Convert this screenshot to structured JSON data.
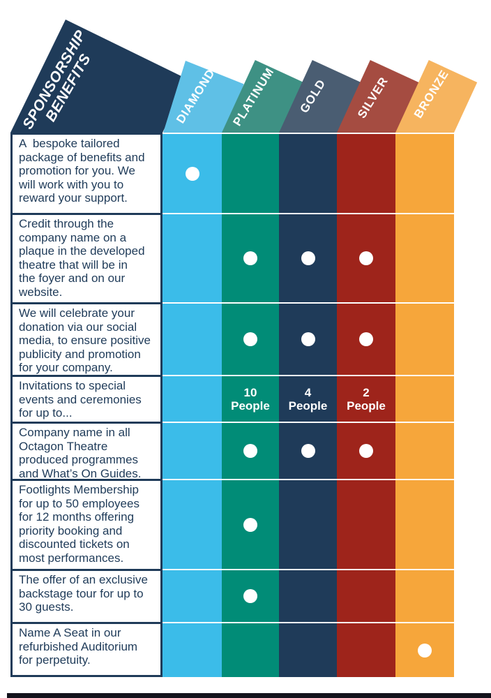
{
  "title": {
    "text": "SPONSORSHIP\nBENEFITS"
  },
  "tiers": [
    {
      "name": "DIAMOND",
      "banner_color": "#5fc0e6",
      "column_color": "#3bbce9"
    },
    {
      "name": "PLATINUM",
      "banner_color": "#3e9184",
      "column_color": "#018c77"
    },
    {
      "name": "GOLD",
      "banner_color": "#4a5d72",
      "column_color": "#1f3b59"
    },
    {
      "name": "SILVER",
      "banner_color": "#a54c41",
      "column_color": "#9e241b"
    },
    {
      "name": "BRONZE",
      "banner_color": "#f6b45f",
      "column_color": "#f6a63b"
    }
  ],
  "rows": [
    {
      "benefit": "A  bespoke tailored\npackage of benefits and\npromotion for you. We\nwill work with you to\nreward your support.",
      "cells": [
        "dot",
        "",
        "",
        "",
        ""
      ]
    },
    {
      "benefit": "Credit through the\ncompany name on a\nplaque in the developed\ntheatre that will be in\nthe foyer and on our\nwebsite.",
      "cells": [
        "",
        "dot",
        "dot",
        "dot",
        ""
      ]
    },
    {
      "benefit": "We will celebrate your\ndonation via our social\nmedia, to ensure positive\npublicity and promotion\nfor your company.",
      "cells": [
        "",
        "dot",
        "dot",
        "dot",
        ""
      ]
    },
    {
      "benefit": "Invitations to special\nevents and ceremonies\nfor up to...",
      "cells": [
        "",
        "10\nPeople",
        "4\nPeople",
        "2\nPeople",
        ""
      ]
    },
    {
      "benefit": "Company name in all\nOctagon Theatre\nproduced programmes\nand What’s On Guides.",
      "cells": [
        "",
        "dot",
        "dot",
        "dot",
        ""
      ]
    },
    {
      "benefit": "Footlights Membership\nfor up to 50 employees\nfor 12 months offering\npriority booking and\ndiscounted tickets on\nmost performances.",
      "cells": [
        "",
        "dot",
        "",
        "",
        ""
      ]
    },
    {
      "benefit": "The offer of an exclusive\nbackstage tour for up to\n30 guests.",
      "cells": [
        "",
        "dot",
        "",
        "",
        ""
      ]
    },
    {
      "benefit": "Name A Seat in our\nrefurbished Auditorium\nfor perpetuity.",
      "cells": [
        "",
        "",
        "",
        "",
        "dot"
      ]
    }
  ],
  "colors": {
    "navy": "#1f3b59",
    "dot": "#ffffff",
    "bottom_bar": "#13131c",
    "background": "#ffffff"
  }
}
